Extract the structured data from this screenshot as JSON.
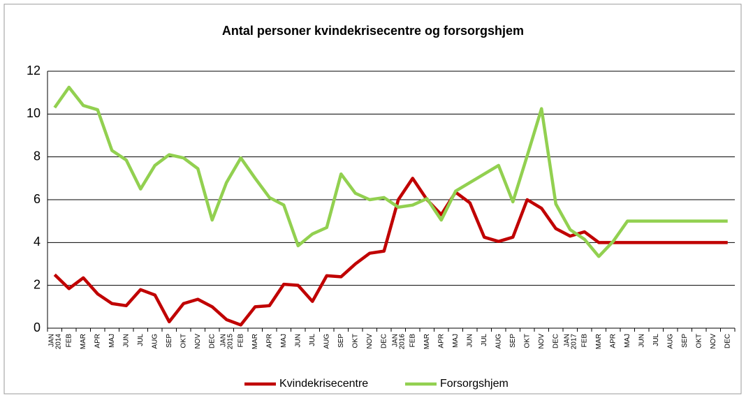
{
  "chart_data": {
    "type": "line",
    "title": "Antal personer kvindekrisecentre og forsorgshjem",
    "categories": [
      "JAN 2014",
      "FEB",
      "MAR",
      "APR",
      "MAJ",
      "JUN",
      "JUL",
      "AUG",
      "SEP",
      "OKT",
      "NOV",
      "DEC",
      "JAN 2015",
      "FEB",
      "MAR",
      "APR",
      "MAJ",
      "JUN",
      "JUL",
      "AUG",
      "SEP",
      "OKT",
      "NOV",
      "DEC",
      "JAN 2016",
      "FEB",
      "MAR",
      "APR",
      "MAJ",
      "JUN",
      "JUL",
      "AUG",
      "SEP",
      "OKT",
      "NOV",
      "DEC",
      "JAN 2017",
      "FEB",
      "MAR",
      "APR",
      "MAJ",
      "JUN",
      "JUL",
      "AUG",
      "SEP",
      "OKT",
      "NOV",
      "DEC"
    ],
    "series": [
      {
        "name": "Kvindekrisecentre",
        "color": "#c00000",
        "values": [
          2.5,
          1.85,
          2.35,
          1.6,
          1.15,
          1.05,
          1.8,
          1.55,
          0.3,
          1.15,
          1.35,
          1.0,
          0.4,
          0.15,
          1.0,
          1.05,
          2.05,
          2.0,
          1.25,
          2.45,
          2.4,
          3.0,
          3.5,
          3.6,
          6.0,
          7.0,
          6.0,
          5.3,
          6.35,
          5.85,
          4.25,
          4.05,
          4.25,
          6.0,
          5.6,
          4.65,
          4.3,
          4.5,
          4.0,
          4.0,
          4.0,
          4.0,
          4.0,
          4.0,
          4.0,
          4.0,
          4.0,
          4.0
        ]
      },
      {
        "name": "Forsorgshjem",
        "color": "#92d050",
        "values": [
          10.3,
          11.25,
          10.4,
          10.2,
          8.3,
          7.85,
          6.5,
          7.6,
          8.1,
          7.95,
          7.45,
          5.05,
          6.8,
          7.95,
          7.0,
          6.1,
          5.75,
          3.85,
          4.4,
          4.7,
          7.2,
          6.3,
          6.0,
          6.1,
          5.65,
          5.75,
          6.05,
          5.05,
          6.4,
          6.8,
          7.2,
          7.6,
          5.9,
          8.05,
          10.25,
          5.8,
          4.6,
          4.15,
          3.35,
          4.05,
          5.0,
          5.0,
          5.0,
          5.0,
          5.0,
          5.0,
          5.0,
          5.0
        ]
      }
    ],
    "ylim": [
      0,
      12
    ],
    "yticks": [
      0,
      2,
      4,
      6,
      8,
      10,
      12
    ],
    "grid": true,
    "legend": "bottom"
  }
}
